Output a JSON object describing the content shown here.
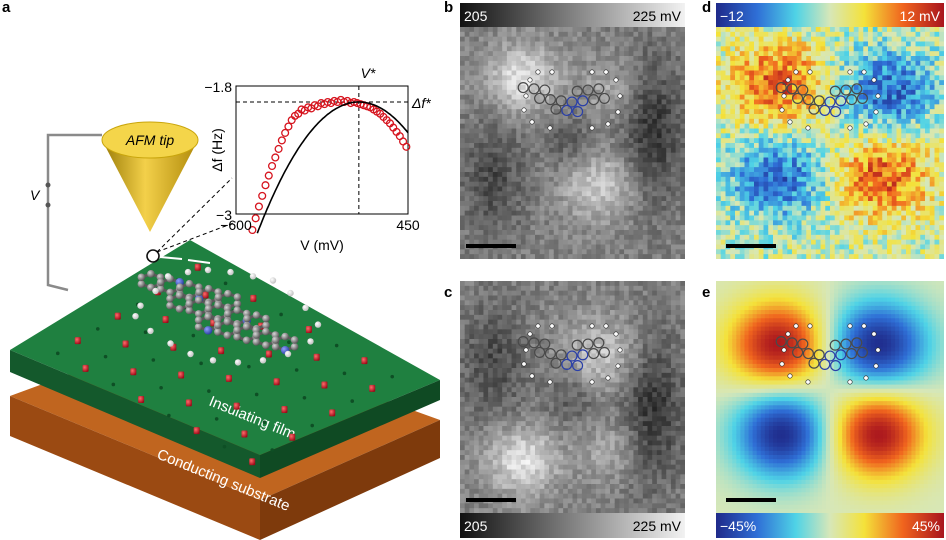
{
  "panels": {
    "a": "a",
    "b": "b",
    "c": "c",
    "d": "d",
    "e": "e"
  },
  "schematic": {
    "tip_label": "AFM tip",
    "bias_label": "V",
    "insulating_label": "Insulating film",
    "substrate_label": "Conducting substrate",
    "colors": {
      "tip": "#e8c11e",
      "film": "#1e7a3c",
      "substrate": "#b85a1c",
      "salt_ion": "#c8102e",
      "carbon": "#6e6e6e",
      "nitrogen": "#3a4fb0",
      "hydrogen": "#ffffff"
    }
  },
  "chart_data": {
    "type": "scatter",
    "xlabel": "V (mV)",
    "ylabel": "Δf (Hz)",
    "xticklabels": [
      "−600",
      "450"
    ],
    "yticklabels": [
      "−1.8",
      "−3"
    ],
    "xlim": [
      -600,
      450
    ],
    "ylim": [
      -3,
      -1.8
    ],
    "annotations": {
      "vstar": "V*",
      "dfstar": "Δf*"
    },
    "vstar_value": 150,
    "dfstar_value": -1.95,
    "fit": {
      "type": "parabola",
      "vertex_x": 150,
      "vertex_y": -1.95,
      "curvature": -3.2e-06
    },
    "points_x": [
      -600,
      -580,
      -560,
      -540,
      -520,
      -500,
      -480,
      -460,
      -440,
      -420,
      -400,
      -380,
      -360,
      -340,
      -320,
      -300,
      -280,
      -260,
      -240,
      -220,
      -200,
      -180,
      -160,
      -140,
      -120,
      -100,
      -80,
      -60,
      -40,
      -20,
      0,
      20,
      40,
      60,
      80,
      100,
      120,
      140,
      160,
      180,
      200,
      220,
      240,
      260,
      280,
      300,
      320,
      340,
      360,
      380,
      400,
      420,
      440
    ],
    "points_y": [
      -3.75,
      -3.62,
      -3.5,
      -3.38,
      -3.26,
      -3.15,
      -3.04,
      -2.93,
      -2.83,
      -2.73,
      -2.64,
      -2.55,
      -2.47,
      -2.39,
      -2.31,
      -2.24,
      -2.18,
      -2.12,
      -2.08,
      -2.06,
      -2.02,
      -2.03,
      -2.0,
      -2.01,
      -1.98,
      -1.99,
      -1.96,
      -1.97,
      -1.95,
      -1.96,
      -1.94,
      -1.95,
      -1.93,
      -1.95,
      -1.94,
      -1.96,
      -1.95,
      -1.96,
      -1.97,
      -1.98,
      -1.99,
      -2.0,
      -2.02,
      -2.04,
      -2.06,
      -2.09,
      -2.12,
      -2.15,
      -2.19,
      -2.23,
      -2.27,
      -2.32,
      -2.37
    ]
  },
  "maps": {
    "b": {
      "min_label": "205",
      "max_label": "225 mV",
      "colormap": "gray",
      "pattern": "lcpd"
    },
    "c": {
      "min_label": "205",
      "max_label": "225 mV",
      "colormap": "gray",
      "pattern": "lcpd_flip"
    },
    "d": {
      "min_label": "−12",
      "max_label": "12 mV",
      "colormap": "jet",
      "pattern": "quad_noisy"
    },
    "e": {
      "min_label": "−45%",
      "max_label": "45%",
      "colormap": "jet",
      "pattern": "quad_smooth"
    }
  }
}
